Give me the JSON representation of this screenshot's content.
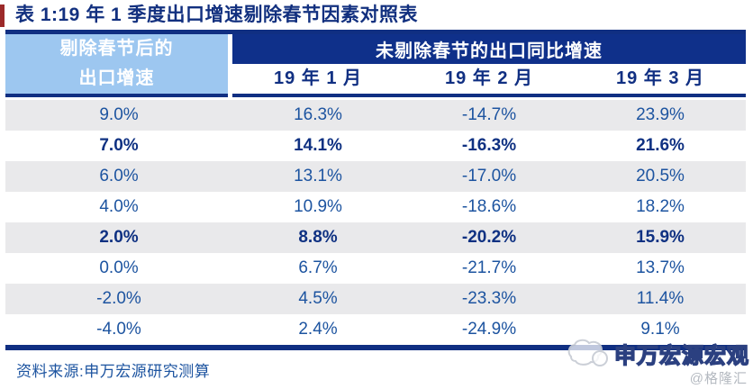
{
  "chart_data": {
    "type": "table",
    "title": "表 1:19 年 1 季度出口增速剔除春节因素对照表",
    "col1_header_lines": [
      "剔除春节后的",
      "出口增速"
    ],
    "group_header": "未剔除春节的出口同比增速",
    "sub_headers": [
      "19 年 1 月",
      "19 年 2 月",
      "19 年 3 月"
    ],
    "columns": [
      "剔除春节后的出口增速",
      "19 年 1 月",
      "19 年 2 月",
      "19 年 3 月"
    ],
    "rows": [
      [
        "9.0%",
        "16.3%",
        "-14.7%",
        "23.9%"
      ],
      [
        "7.0%",
        "14.1%",
        "-16.3%",
        "21.6%"
      ],
      [
        "6.0%",
        "13.1%",
        "-17.0%",
        "20.5%"
      ],
      [
        "4.0%",
        "10.9%",
        "-18.6%",
        "18.2%"
      ],
      [
        "2.0%",
        "8.8%",
        "-20.2%",
        "15.9%"
      ],
      [
        "0.0%",
        "6.7%",
        "-21.7%",
        "13.7%"
      ],
      [
        "-2.0%",
        "4.5%",
        "-23.3%",
        "11.4%"
      ],
      [
        "-4.0%",
        "2.4%",
        "-24.9%",
        "9.1%"
      ]
    ],
    "emphasis_rows": [
      1,
      4
    ],
    "layout": {
      "stripe_rows": "odd",
      "grid": false
    }
  },
  "footer": {
    "source": "资料来源:申万宏源研究测算"
  },
  "watermark": {
    "brand": "申万宏源宏观",
    "handle": "@格隆汇",
    "logo": "sws-elephant-logo"
  },
  "colors": {
    "navy": "#102f82",
    "header_blue": "#0f308a",
    "light_blue": "#9dc7f0",
    "data_text": "#1d54a0",
    "emphasis_text": "#0f3182",
    "stripe_gray": "#e9e9eb",
    "title_accent_red": "#9c2a2a",
    "watermark_gray": "#b4b9c0"
  }
}
